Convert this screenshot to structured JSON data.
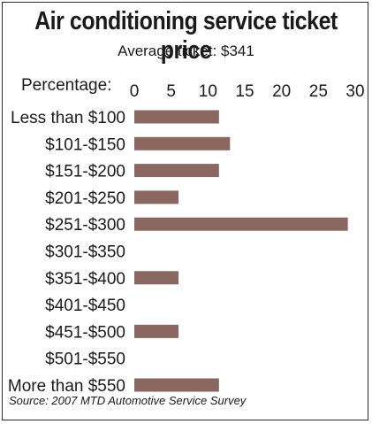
{
  "chart_data": {
    "type": "bar",
    "orientation": "horizontal",
    "title": "Air conditioning service ticket price",
    "subtitle": "Average ticket: $341",
    "axis_label": "Percentage:",
    "xlim": [
      0,
      30
    ],
    "ticks": [
      "0",
      "5",
      "10",
      "15",
      "20",
      "25",
      "30"
    ],
    "categories": [
      "Less than $100",
      "$101-$150",
      "$151-$200",
      "$201-$250",
      "$251-$300",
      "$301-$350",
      "$351-$400",
      "$401-$450",
      "$451-$500",
      "$501-$550",
      "More than $550"
    ],
    "values": [
      11.5,
      13,
      11.5,
      6,
      29,
      0,
      6,
      0,
      6,
      0,
      11.5
    ],
    "bar_color": "#8b6762",
    "source": "Source: 2007 MTD Automotive Service Survey"
  }
}
